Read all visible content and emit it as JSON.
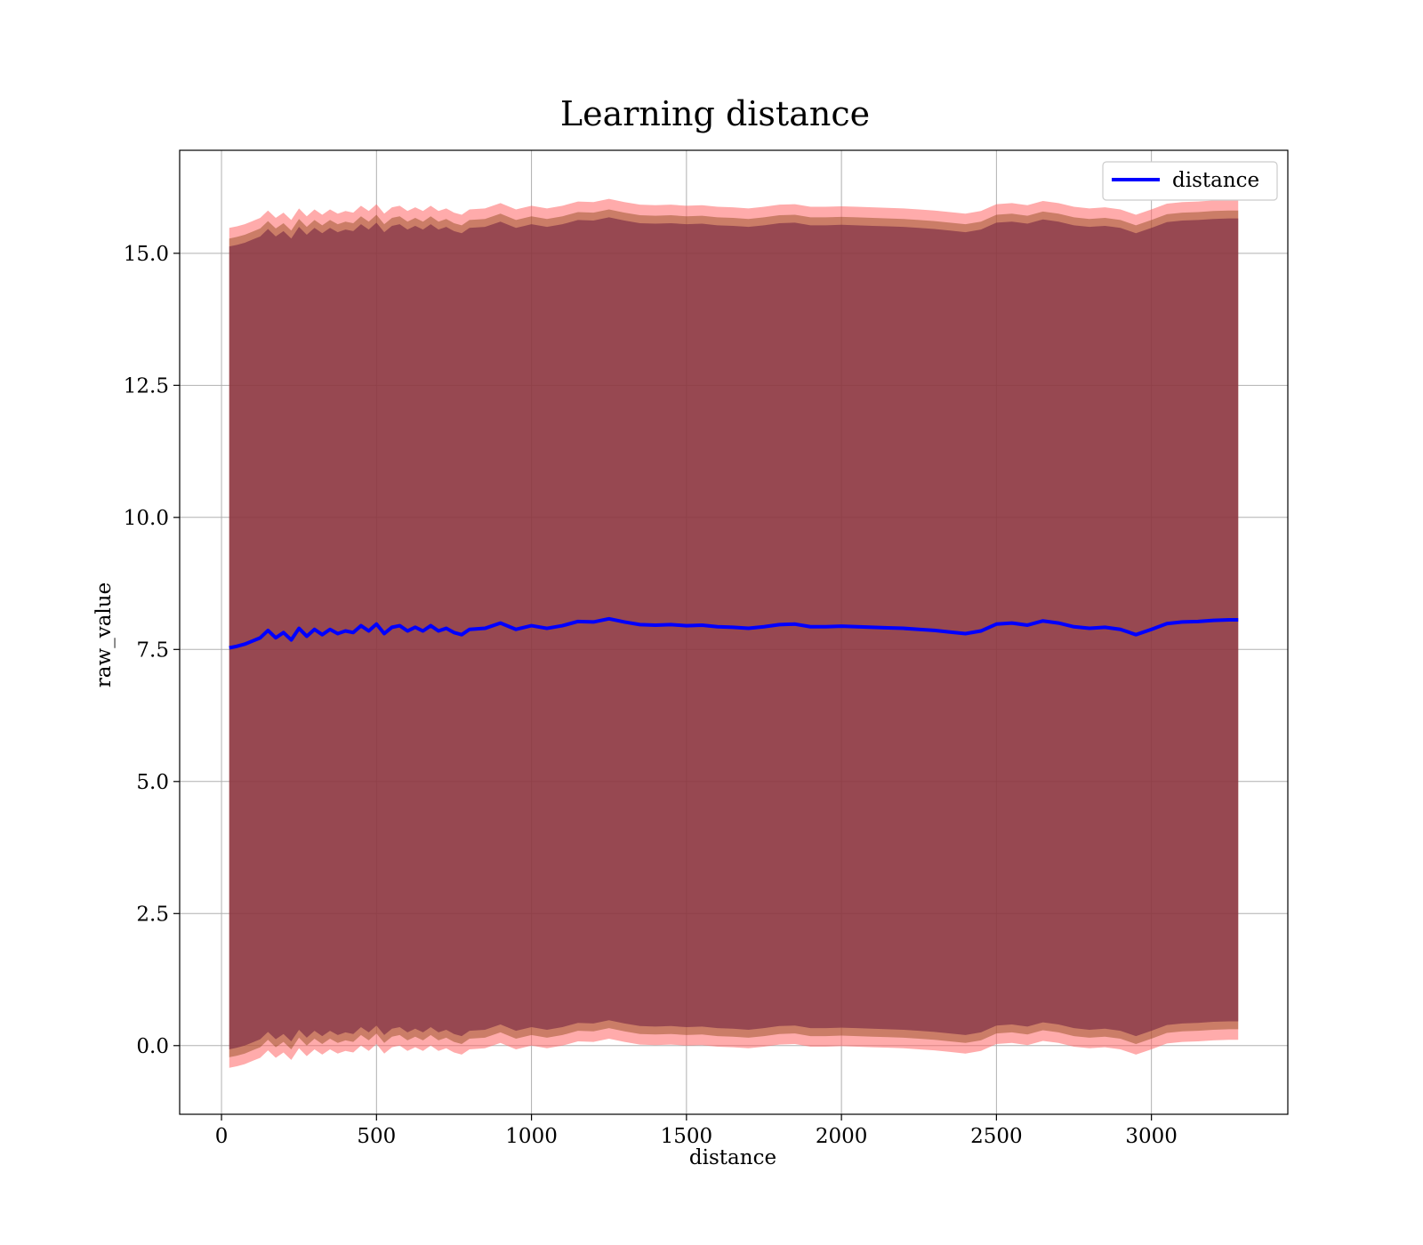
{
  "chart_data": {
    "type": "line",
    "title": "Learning distance",
    "xlabel": "distance",
    "ylabel": "raw_value",
    "xlim": [
      -135,
      3440
    ],
    "ylim": [
      -1.3,
      16.95
    ],
    "xticks": [
      0,
      500,
      1000,
      1500,
      2000,
      2500,
      3000
    ],
    "yticks": [
      0.0,
      2.5,
      5.0,
      7.5,
      10.0,
      12.5,
      15.0
    ],
    "xtick_labels": [
      "0",
      "500",
      "1000",
      "1500",
      "2000",
      "2500",
      "3000"
    ],
    "ytick_labels": [
      "0.0",
      "2.5",
      "5.0",
      "7.5",
      "10.0",
      "12.5",
      "15.0"
    ],
    "grid": true,
    "legend": {
      "position": "top-right",
      "entries": [
        "distance"
      ]
    },
    "colors": {
      "line": "#0000ff",
      "inner_band": "#8b4513",
      "outer_band": "#ff6666",
      "core_band": "#7b2d45"
    },
    "series": [
      {
        "name": "distance",
        "x": [
          25,
          50,
          75,
          100,
          125,
          150,
          175,
          200,
          225,
          250,
          275,
          300,
          325,
          350,
          375,
          400,
          425,
          450,
          475,
          500,
          525,
          550,
          575,
          600,
          625,
          650,
          675,
          700,
          725,
          750,
          775,
          800,
          850,
          900,
          950,
          1000,
          1050,
          1100,
          1150,
          1200,
          1250,
          1300,
          1350,
          1400,
          1450,
          1500,
          1550,
          1600,
          1650,
          1700,
          1750,
          1800,
          1850,
          1900,
          1950,
          2000,
          2050,
          2100,
          2150,
          2200,
          2250,
          2300,
          2350,
          2400,
          2450,
          2500,
          2550,
          2600,
          2650,
          2700,
          2750,
          2800,
          2850,
          2900,
          2950,
          3000,
          3050,
          3100,
          3150,
          3200,
          3250,
          3280
        ],
        "y": [
          7.53,
          7.56,
          7.6,
          7.66,
          7.72,
          7.86,
          7.72,
          7.82,
          7.68,
          7.9,
          7.75,
          7.88,
          7.78,
          7.88,
          7.8,
          7.85,
          7.82,
          7.95,
          7.85,
          7.98,
          7.8,
          7.92,
          7.95,
          7.85,
          7.92,
          7.85,
          7.95,
          7.85,
          7.9,
          7.82,
          7.78,
          7.88,
          7.9,
          8.0,
          7.88,
          7.95,
          7.9,
          7.95,
          8.03,
          8.02,
          8.08,
          8.02,
          7.97,
          7.96,
          7.97,
          7.95,
          7.96,
          7.93,
          7.92,
          7.9,
          7.93,
          7.97,
          7.98,
          7.93,
          7.93,
          7.94,
          7.93,
          7.92,
          7.91,
          7.9,
          7.88,
          7.86,
          7.83,
          7.8,
          7.85,
          7.98,
          8.0,
          7.96,
          8.04,
          8.0,
          7.93,
          7.9,
          7.92,
          7.88,
          7.78,
          7.88,
          7.99,
          8.02,
          8.03,
          8.05,
          8.06,
          8.06
        ]
      }
    ],
    "bands": [
      {
        "name": "outer",
        "lower_offset": -7.95,
        "upper_offset": 7.95
      },
      {
        "name": "inner",
        "lower_offset": -7.75,
        "upper_offset": 7.75
      },
      {
        "name": "core",
        "lower_offset": -7.6,
        "upper_offset": 7.6
      }
    ]
  }
}
